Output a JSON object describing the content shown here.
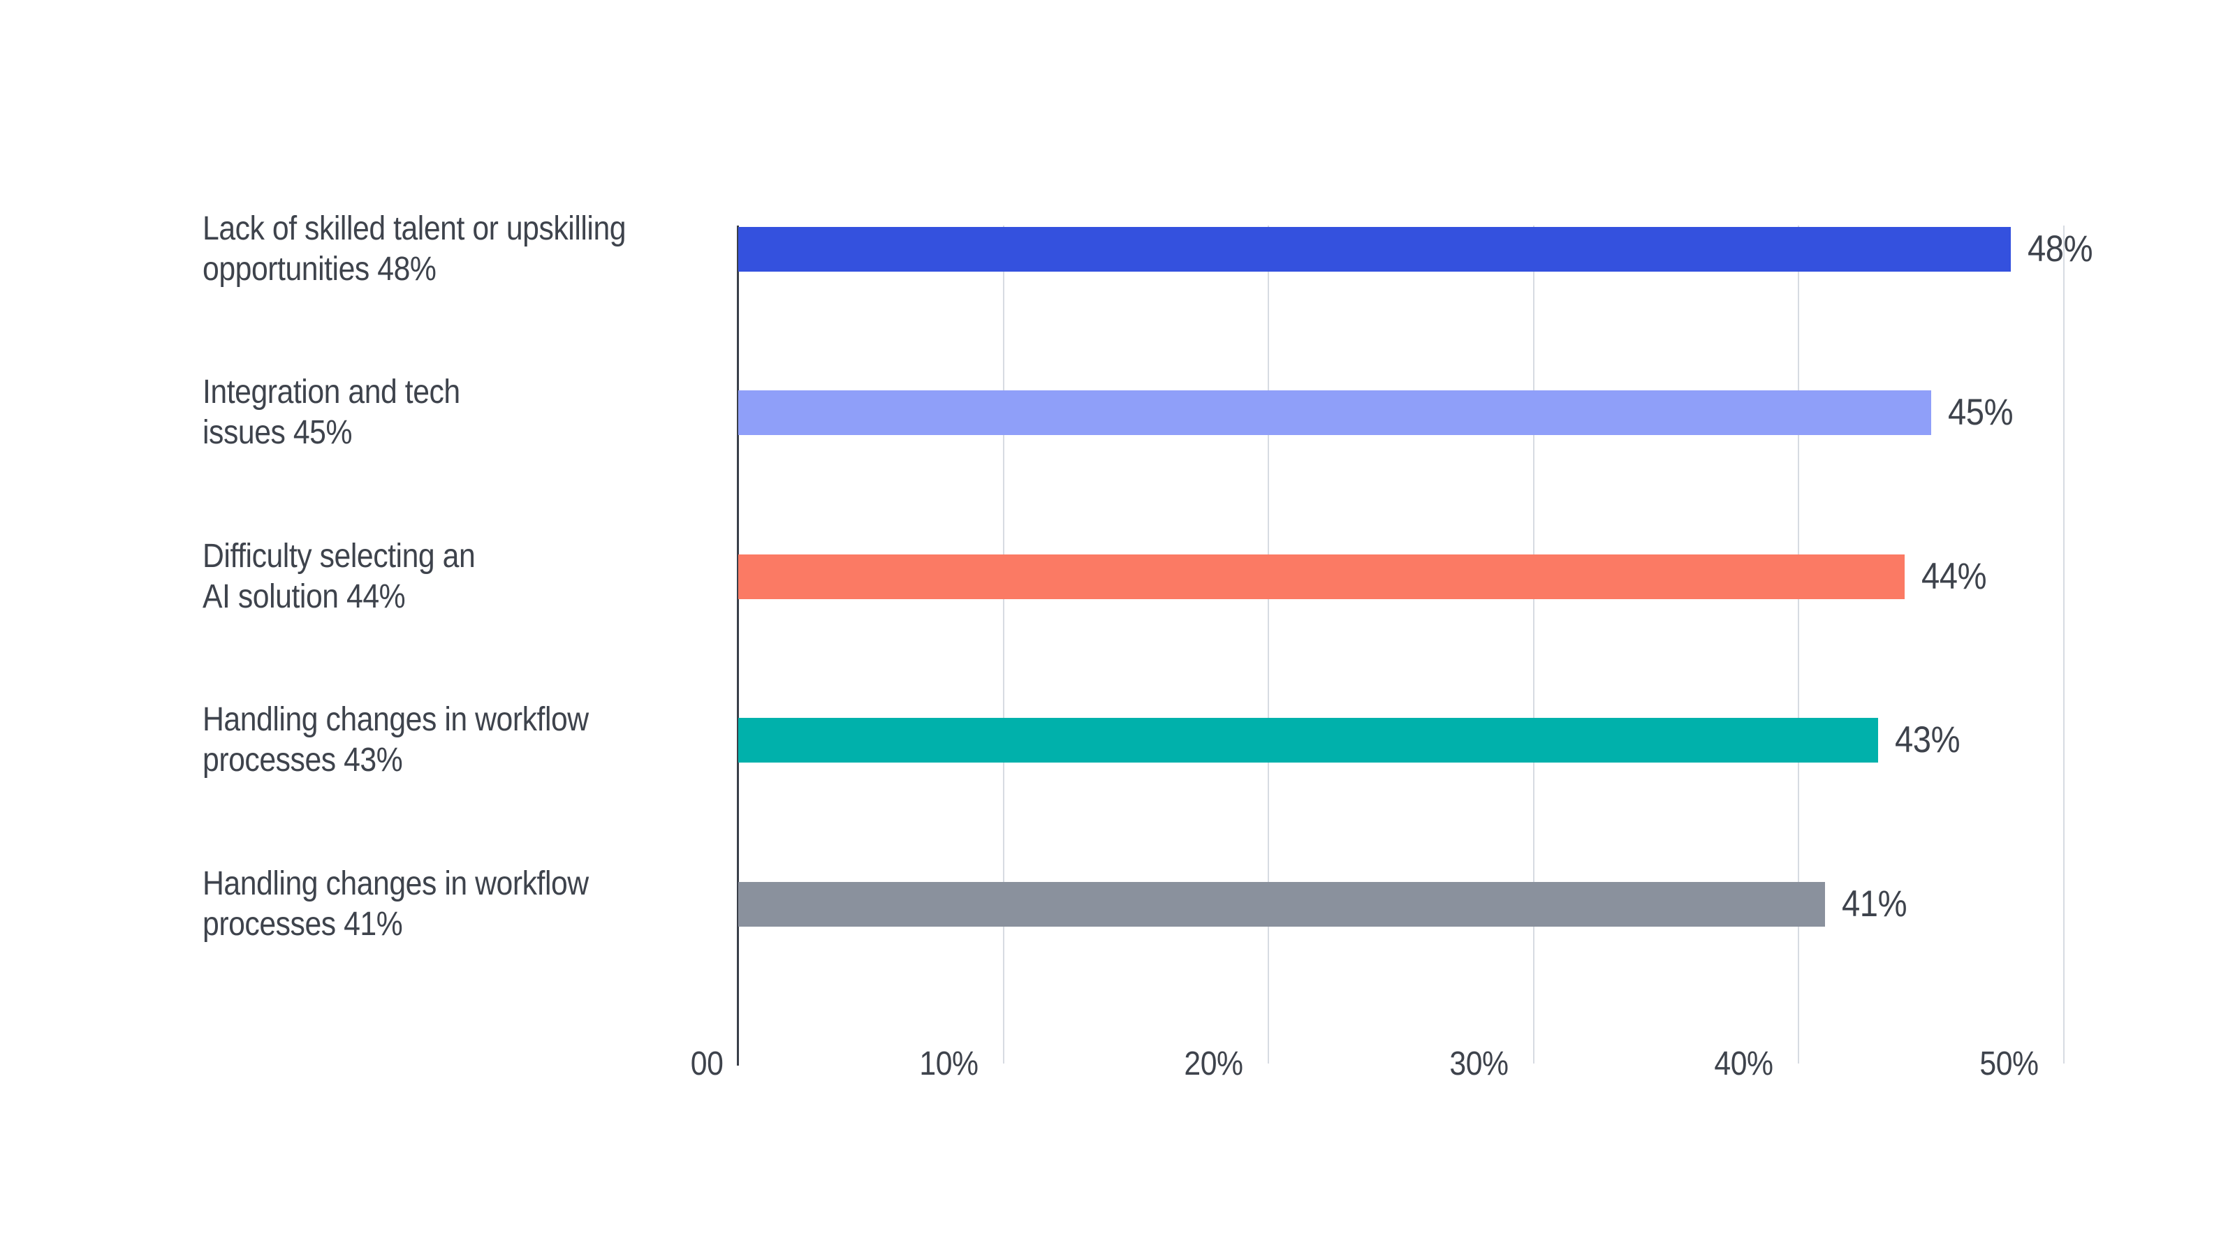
{
  "chart_data": {
    "type": "bar",
    "orientation": "horizontal",
    "title": "",
    "xlabel": "",
    "ylabel": "",
    "legend": "none",
    "grid": "vertical gridlines every 10%",
    "xlim": [
      0,
      50
    ],
    "categories": [
      "Lack of skilled talent or upskilling opportunities",
      "Integration and tech issues",
      "Difficulty selecting an AI solution",
      "Handling changes in workflow processes",
      "Handling changes in workflow processes"
    ],
    "values": [
      48,
      45,
      44,
      43,
      41
    ],
    "value_labels": [
      "48%",
      "45%",
      "44%",
      "43%",
      "41%"
    ],
    "category_label_lines": [
      [
        "Lack of skilled talent or upskilling",
        "opportunities 48%"
      ],
      [
        "Integration and tech",
        "issues 45%"
      ],
      [
        "Difficulty selecting an",
        "AI solution 44%"
      ],
      [
        "Handling changes in workflow",
        "processes 43%"
      ],
      [
        "Handling changes in workflow",
        "processes 41%"
      ]
    ],
    "bar_colors": [
      "#3451DE",
      "#8F9FF9",
      "#FB7A64",
      "#00B1AB",
      "#8A919D"
    ],
    "x_ticks": [
      {
        "label": "00",
        "value": 0
      },
      {
        "label": "10%",
        "value": 10
      },
      {
        "label": "20%",
        "value": 20
      },
      {
        "label": "30%",
        "value": 30
      },
      {
        "label": "40%",
        "value": 40
      },
      {
        "label": "50%",
        "value": 50
      }
    ]
  },
  "colors": {
    "background": "#FFFFFF",
    "text": "#3E434C",
    "gridline": "#D7DBE2",
    "axis_line": "#3A3F49"
  }
}
